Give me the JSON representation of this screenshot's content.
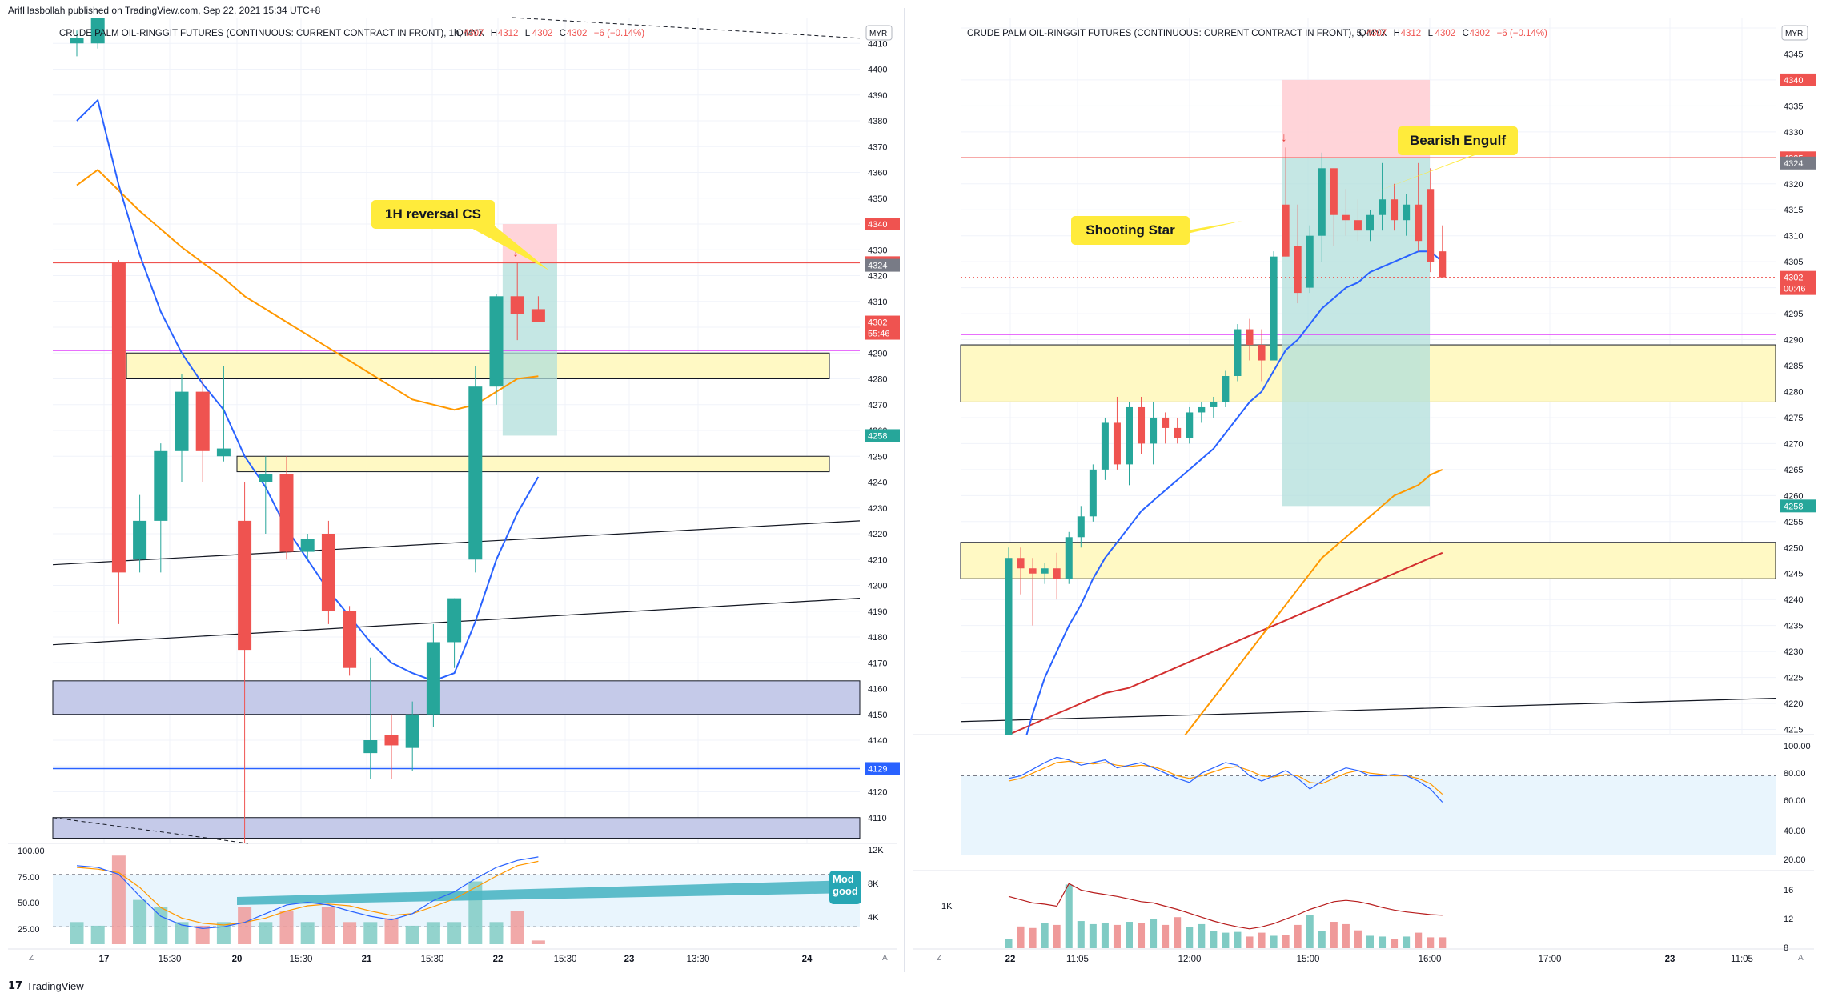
{
  "header": {
    "publisher_line": "ArifHasbollah published on TradingView.com, Sep 22, 2021 15:34 UTC+8"
  },
  "footer": {
    "brand": "TradingView"
  },
  "colors": {
    "up": "#26a69a",
    "down": "#ef5350",
    "ema_fast": "#2962ff",
    "ema_slow": "#ff9800",
    "ma_long": "#d32f2f",
    "zone_fill": "#fff9c4",
    "demand_fill": "#c5cae9",
    "target_fill": "#b2dfdb",
    "stop_fill": "#ffcdd2",
    "magenta": "#e040fb",
    "callout": "#ffeb3b"
  },
  "chart_data": [
    {
      "type": "candlestick",
      "title": "CRUDE PALM OIL-RINGGIT FUTURES (CONTINUOUS: CURRENT CONTRACT IN FRONT), 1h, MYX",
      "ohlc_readout": {
        "o_label": "O",
        "o": "4307",
        "h_label": "H",
        "h": "4312",
        "l_label": "L",
        "l": "4302",
        "c_label": "C",
        "c": "4302",
        "change": "−6 (−0.14%)"
      },
      "currency": "MYR",
      "ylim": [
        4100,
        4420
      ],
      "y_ticks": [
        4110,
        4120,
        4130,
        4140,
        4150,
        4160,
        4170,
        4180,
        4190,
        4200,
        4210,
        4220,
        4230,
        4240,
        4250,
        4260,
        4270,
        4280,
        4290,
        4300,
        4310,
        4320,
        4330,
        4340,
        4350,
        4360,
        4370,
        4380,
        4390,
        4400,
        4410
      ],
      "x_labels": [
        "17",
        "15:30",
        "20",
        "15:30",
        "21",
        "15:30",
        "22",
        "15:30",
        "23",
        "13:30",
        "24"
      ],
      "candles": [
        {
          "o": 4410,
          "h": 4415,
          "l": 4405,
          "c": 4412
        },
        {
          "o": 4410,
          "h": 4420,
          "l": 4408,
          "c": 4420
        },
        {
          "o": 4325,
          "h": 4326,
          "l": 4185,
          "c": 4205
        },
        {
          "o": 4210,
          "h": 4235,
          "l": 4205,
          "c": 4225
        },
        {
          "o": 4225,
          "h": 4255,
          "l": 4205,
          "c": 4252
        },
        {
          "o": 4252,
          "h": 4282,
          "l": 4240,
          "c": 4275
        },
        {
          "o": 4275,
          "h": 4280,
          "l": 4240,
          "c": 4252
        },
        {
          "o": 4250,
          "h": 4285,
          "l": 4248,
          "c": 4253
        },
        {
          "o": 4225,
          "h": 4240,
          "l": 4100,
          "c": 4175
        },
        {
          "o": 4240,
          "h": 4250,
          "l": 4220,
          "c": 4243
        },
        {
          "o": 4243,
          "h": 4250,
          "l": 4210,
          "c": 4213
        },
        {
          "o": 4213,
          "h": 4220,
          "l": 4210,
          "c": 4218
        },
        {
          "o": 4220,
          "h": 4225,
          "l": 4185,
          "c": 4190
        },
        {
          "o": 4190,
          "h": 4192,
          "l": 4165,
          "c": 4168
        },
        {
          "o": 4135,
          "h": 4172,
          "l": 4125,
          "c": 4140
        },
        {
          "o": 4142,
          "h": 4150,
          "l": 4125,
          "c": 4138
        },
        {
          "o": 4137,
          "h": 4155,
          "l": 4128,
          "c": 4150
        },
        {
          "o": 4150,
          "h": 4185,
          "l": 4145,
          "c": 4178
        },
        {
          "o": 4178,
          "h": 4195,
          "l": 4168,
          "c": 4195
        },
        {
          "o": 4210,
          "h": 4285,
          "l": 4205,
          "c": 4277
        },
        {
          "o": 4277,
          "h": 4313,
          "l": 4270,
          "c": 4312
        },
        {
          "o": 4312,
          "h": 4325,
          "l": 4295,
          "c": 4305
        },
        {
          "o": 4307,
          "h": 4312,
          "l": 4302,
          "c": 4302
        }
      ],
      "ema_fast": [
        4380,
        4388,
        4355,
        4328,
        4306,
        4290,
        4278,
        4268,
        4250,
        4238,
        4222,
        4210,
        4198,
        4188,
        4178,
        4170,
        4166,
        4163,
        4166,
        4186,
        4210,
        4228,
        4242
      ],
      "ema_slow": [
        4355,
        4361,
        4353,
        4345,
        4338,
        4331,
        4325,
        4319,
        4312,
        4307,
        4302,
        4297,
        4292,
        4287,
        4282,
        4277,
        4272,
        4270,
        4268,
        4270,
        4275,
        4280,
        4281
      ],
      "price_labels": [
        {
          "value": 4340,
          "text": "4340",
          "color": "#ef5350"
        },
        {
          "value": 4325,
          "text": "4325",
          "color": "#ef5350"
        },
        {
          "value": 4324,
          "text": "4324",
          "color": "#787b86"
        },
        {
          "value": 4302,
          "text": "4302",
          "sub": "55:46",
          "color": "#ef5350"
        },
        {
          "value": 4258,
          "text": "4258",
          "color": "#26a69a"
        },
        {
          "value": 4129,
          "text": "4129",
          "color": "#2962ff"
        }
      ],
      "zones": [
        {
          "type": "supply",
          "low": 4280,
          "high": 4290
        },
        {
          "type": "supply",
          "low": 4244,
          "high": 4250
        },
        {
          "type": "demand",
          "low": 4150,
          "high": 4163
        },
        {
          "type": "demand",
          "low": 4102,
          "high": 4110
        }
      ],
      "horizontal_lines": [
        {
          "value": 4325,
          "color": "#ef5350"
        },
        {
          "value": 4291,
          "color": "#e040fb"
        },
        {
          "value": 4129,
          "color": "#2962ff"
        }
      ],
      "annotation": "1H reversal CS",
      "oscillator": {
        "ylim": [
          0,
          110
        ],
        "levels": [
          "100.00",
          "75.00",
          "50.00",
          "25.00"
        ],
        "upper": 80,
        "lower": 20,
        "k": [
          90,
          88,
          80,
          55,
          32,
          22,
          18,
          20,
          25,
          35,
          45,
          48,
          45,
          38,
          32,
          28,
          35,
          50,
          60,
          75,
          88,
          96,
          100
        ],
        "d": [
          88,
          86,
          82,
          65,
          42,
          30,
          24,
          22,
          25,
          30,
          38,
          44,
          46,
          44,
          38,
          33,
          35,
          43,
          52,
          65,
          78,
          90,
          95
        ]
      },
      "volume": {
        "right_ticks": [
          "12K",
          "8K",
          "4K"
        ],
        "bars": [
          3,
          2.5,
          12,
          6,
          5,
          3,
          2.5,
          3,
          5,
          3,
          4.5,
          3,
          5,
          3,
          3,
          3.5,
          2.5,
          3,
          3,
          8.5,
          3,
          4.5,
          0.5
        ]
      },
      "truncated_label": "Mod good"
    },
    {
      "type": "candlestick",
      "title": "CRUDE PALM OIL-RINGGIT FUTURES (CONTINUOUS: CURRENT CONTRACT IN FRONT), 5, MYX",
      "ohlc_readout": {
        "o_label": "O",
        "o": "4307",
        "h_label": "H",
        "h": "4312",
        "l_label": "L",
        "l": "4302",
        "c_label": "C",
        "c": "4302",
        "change": "−6 (−0.14%)"
      },
      "currency": "MYR",
      "ylim": [
        4214,
        4352
      ],
      "y_ticks": [
        4215,
        4220,
        4225,
        4230,
        4235,
        4240,
        4245,
        4250,
        4255,
        4260,
        4265,
        4270,
        4275,
        4280,
        4285,
        4290,
        4295,
        4300,
        4305,
        4310,
        4315,
        4320,
        4325,
        4330,
        4335,
        4340,
        4345,
        4350
      ],
      "x_labels": [
        "22",
        "11:05",
        "12:00",
        "15:00",
        "16:00",
        "17:00",
        "23",
        "11:05"
      ],
      "candles": [
        {
          "o": 4214,
          "h": 4250,
          "l": 4214,
          "c": 4248
        },
        {
          "o": 4248,
          "h": 4250,
          "l": 4241,
          "c": 4246
        },
        {
          "o": 4246,
          "h": 4248,
          "l": 4235,
          "c": 4245
        },
        {
          "o": 4245,
          "h": 4247,
          "l": 4243,
          "c": 4246
        },
        {
          "o": 4246,
          "h": 4249,
          "l": 4240,
          "c": 4244
        },
        {
          "o": 4244,
          "h": 4253,
          "l": 4243,
          "c": 4252
        },
        {
          "o": 4252,
          "h": 4258,
          "l": 4250,
          "c": 4256
        },
        {
          "o": 4256,
          "h": 4266,
          "l": 4255,
          "c": 4265
        },
        {
          "o": 4265,
          "h": 4275,
          "l": 4263,
          "c": 4274
        },
        {
          "o": 4274,
          "h": 4279,
          "l": 4265,
          "c": 4266
        },
        {
          "o": 4266,
          "h": 4278,
          "l": 4262,
          "c": 4277
        },
        {
          "o": 4277,
          "h": 4279,
          "l": 4268,
          "c": 4270
        },
        {
          "o": 4270,
          "h": 4278,
          "l": 4266,
          "c": 4275
        },
        {
          "o": 4275,
          "h": 4276,
          "l": 4270,
          "c": 4273
        },
        {
          "o": 4273,
          "h": 4275,
          "l": 4270,
          "c": 4271
        },
        {
          "o": 4271,
          "h": 4277,
          "l": 4270,
          "c": 4276
        },
        {
          "o": 4276,
          "h": 4278,
          "l": 4274,
          "c": 4277
        },
        {
          "o": 4277,
          "h": 4279,
          "l": 4275,
          "c": 4278
        },
        {
          "o": 4278,
          "h": 4284,
          "l": 4277,
          "c": 4283
        },
        {
          "o": 4283,
          "h": 4293,
          "l": 4282,
          "c": 4292
        },
        {
          "o": 4292,
          "h": 4294,
          "l": 4286,
          "c": 4289
        },
        {
          "o": 4289,
          "h": 4292,
          "l": 4282,
          "c": 4286
        },
        {
          "o": 4286,
          "h": 4307,
          "l": 4286,
          "c": 4306
        },
        {
          "o": 4316,
          "h": 4327,
          "l": 4306,
          "c": 4306
        },
        {
          "o": 4308,
          "h": 4316,
          "l": 4297,
          "c": 4299
        },
        {
          "o": 4300,
          "h": 4312,
          "l": 4299,
          "c": 4310
        },
        {
          "o": 4310,
          "h": 4326,
          "l": 4305,
          "c": 4323
        },
        {
          "o": 4323,
          "h": 4323,
          "l": 4308,
          "c": 4314
        },
        {
          "o": 4314,
          "h": 4319,
          "l": 4310,
          "c": 4313
        },
        {
          "o": 4313,
          "h": 4317,
          "l": 4309,
          "c": 4311
        },
        {
          "o": 4311,
          "h": 4315,
          "l": 4309,
          "c": 4314
        },
        {
          "o": 4314,
          "h": 4324,
          "l": 4311,
          "c": 4317
        },
        {
          "o": 4317,
          "h": 4320,
          "l": 4311,
          "c": 4313
        },
        {
          "o": 4313,
          "h": 4318,
          "l": 4310,
          "c": 4316
        },
        {
          "o": 4316,
          "h": 4324,
          "l": 4307,
          "c": 4309
        },
        {
          "o": 4319,
          "h": 4323,
          "l": 4303,
          "c": 4305
        },
        {
          "o": 4307,
          "h": 4312,
          "l": 4302,
          "c": 4302
        }
      ],
      "ema_fast": [
        4200,
        4210,
        4218,
        4225,
        4230,
        4235,
        4239,
        4244,
        4248,
        4251,
        4254,
        4257,
        4259,
        4261,
        4263,
        4265,
        4267,
        4269,
        4272,
        4275,
        4278,
        4280,
        4284,
        4288,
        4290,
        4293,
        4296,
        4298,
        4300,
        4301,
        4303,
        4304,
        4305,
        4306,
        4307,
        4307,
        4305
      ],
      "ema_slow": [
        4170,
        4173,
        4176,
        4179,
        4182,
        4185,
        4188,
        4191,
        4194,
        4197,
        4200,
        4203,
        4206,
        4209,
        4212,
        4215,
        4218,
        4221,
        4224,
        4227,
        4230,
        4233,
        4236,
        4239,
        4242,
        4245,
        4248,
        4250,
        4252,
        4254,
        4256,
        4258,
        4260,
        4261,
        4262,
        4264,
        4265
      ],
      "ma_long": [
        4214,
        4215,
        4216,
        4217,
        4218,
        4219,
        4220,
        4221,
        4222,
        4222.5,
        4223,
        4224,
        4225,
        4226,
        4227,
        4228,
        4229,
        4230,
        4231,
        4232,
        4233,
        4234,
        4235,
        4236,
        4237,
        4238,
        4239,
        4240,
        4241,
        4242,
        4243,
        4244,
        4245,
        4246,
        4247,
        4248,
        4249
      ],
      "price_labels": [
        {
          "value": 4340,
          "text": "4340",
          "color": "#ef5350"
        },
        {
          "value": 4325,
          "text": "4325",
          "color": "#ef5350"
        },
        {
          "value": 4324,
          "text": "4324",
          "color": "#787b86"
        },
        {
          "value": 4302,
          "text": "4302",
          "sub": "00:46",
          "color": "#ef5350"
        },
        {
          "value": 4258,
          "text": "4258",
          "color": "#26a69a"
        }
      ],
      "zones": [
        {
          "type": "supply",
          "low": 4278,
          "high": 4289
        },
        {
          "type": "supply",
          "low": 4244,
          "high": 4251
        }
      ],
      "horizontal_lines": [
        {
          "value": 4325,
          "color": "#ef5350"
        },
        {
          "value": 4291,
          "color": "#e040fb"
        }
      ],
      "annotations": [
        "Bearish Engulf",
        "Shooting Star"
      ],
      "oscillator": {
        "ylim": [
          10,
          110
        ],
        "levels": [
          "100.00",
          "80.00",
          "60.00",
          "40.00",
          "20.00"
        ],
        "upper": 80,
        "lower": 20,
        "k": [
          78,
          80,
          85,
          90,
          94,
          92,
          88,
          90,
          92,
          86,
          88,
          90,
          86,
          82,
          78,
          75,
          82,
          86,
          90,
          88,
          80,
          76,
          80,
          84,
          78,
          70,
          76,
          82,
          86,
          84,
          80,
          80,
          81,
          80,
          76,
          70,
          60
        ],
        "d": [
          76,
          78,
          82,
          86,
          90,
          91,
          90,
          89,
          90,
          88,
          87,
          88,
          87,
          84,
          80,
          78,
          80,
          83,
          86,
          87,
          84,
          80,
          79,
          81,
          80,
          75,
          74,
          78,
          82,
          84,
          82,
          81,
          80,
          80,
          78,
          74,
          66
        ]
      },
      "volume": {
        "right_ticks": [
          "16",
          "12",
          "8"
        ],
        "left_tick": "1K",
        "bars": [
          1.2,
          2.8,
          2.6,
          3.2,
          3.0,
          8.2,
          3.5,
          3.1,
          3.3,
          3.0,
          3.4,
          3.2,
          3.8,
          3.0,
          4.0,
          2.7,
          3.1,
          2.2,
          2.0,
          2.1,
          1.5,
          2.0,
          1.6,
          1.7,
          3.0,
          4.3,
          2.2,
          3.4,
          3.1,
          2.3,
          1.6,
          1.5,
          1.2,
          1.5,
          2.0,
          1.4,
          1.4
        ],
        "ma": [
          14,
          13.5,
          13,
          12.8,
          12.5,
          16,
          15,
          14.6,
          14.3,
          14,
          13.6,
          13.2,
          13,
          12.5,
          12,
          11.4,
          10.8,
          10.2,
          9.7,
          9.3,
          9,
          9.3,
          9.8,
          10.5,
          11.2,
          12,
          12.6,
          13.2,
          13.4,
          13.2,
          12.8,
          12.3,
          11.9,
          11.6,
          11.4,
          11.2,
          11.1
        ]
      },
      "time_x_labels_note": ""
    }
  ]
}
